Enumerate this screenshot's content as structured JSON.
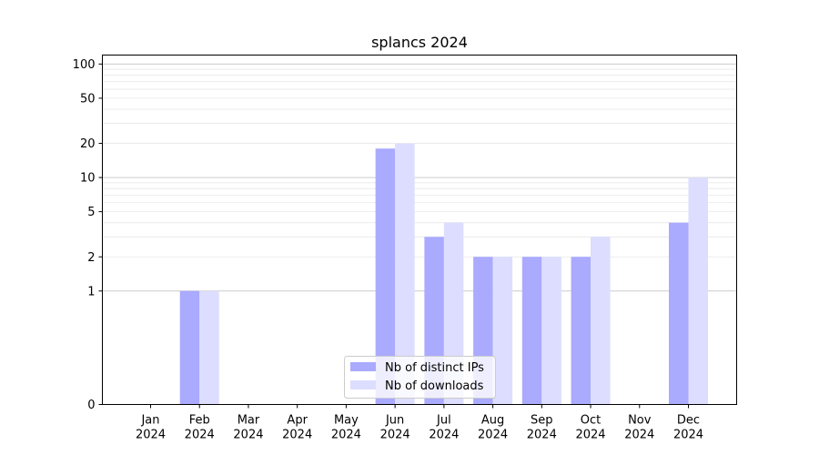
{
  "chart_data": {
    "type": "bar",
    "title": "splancs 2024",
    "xlabel": "",
    "ylabel": "",
    "y_scale": "symlog",
    "ylim": [
      0,
      120
    ],
    "y_ticks": [
      0,
      1,
      2,
      5,
      10,
      20,
      50,
      100
    ],
    "grid": "horizontal",
    "legend_position": "bottom-center",
    "categories": [
      [
        "Jan",
        "2024"
      ],
      [
        "Feb",
        "2024"
      ],
      [
        "Mar",
        "2024"
      ],
      [
        "Apr",
        "2024"
      ],
      [
        "May",
        "2024"
      ],
      [
        "Jun",
        "2024"
      ],
      [
        "Jul",
        "2024"
      ],
      [
        "Aug",
        "2024"
      ],
      [
        "Sep",
        "2024"
      ],
      [
        "Oct",
        "2024"
      ],
      [
        "Nov",
        "2024"
      ],
      [
        "Dec",
        "2024"
      ]
    ],
    "series": [
      {
        "name": "Nb of distinct IPs",
        "color": "#aaaaff",
        "values": [
          0,
          1,
          0,
          0,
          0,
          18,
          3,
          2,
          2,
          2,
          0,
          4
        ]
      },
      {
        "name": "Nb of downloads",
        "color": "#ddddff",
        "values": [
          0,
          1,
          0,
          0,
          0,
          20,
          4,
          2,
          2,
          3,
          0,
          10
        ]
      }
    ]
  }
}
